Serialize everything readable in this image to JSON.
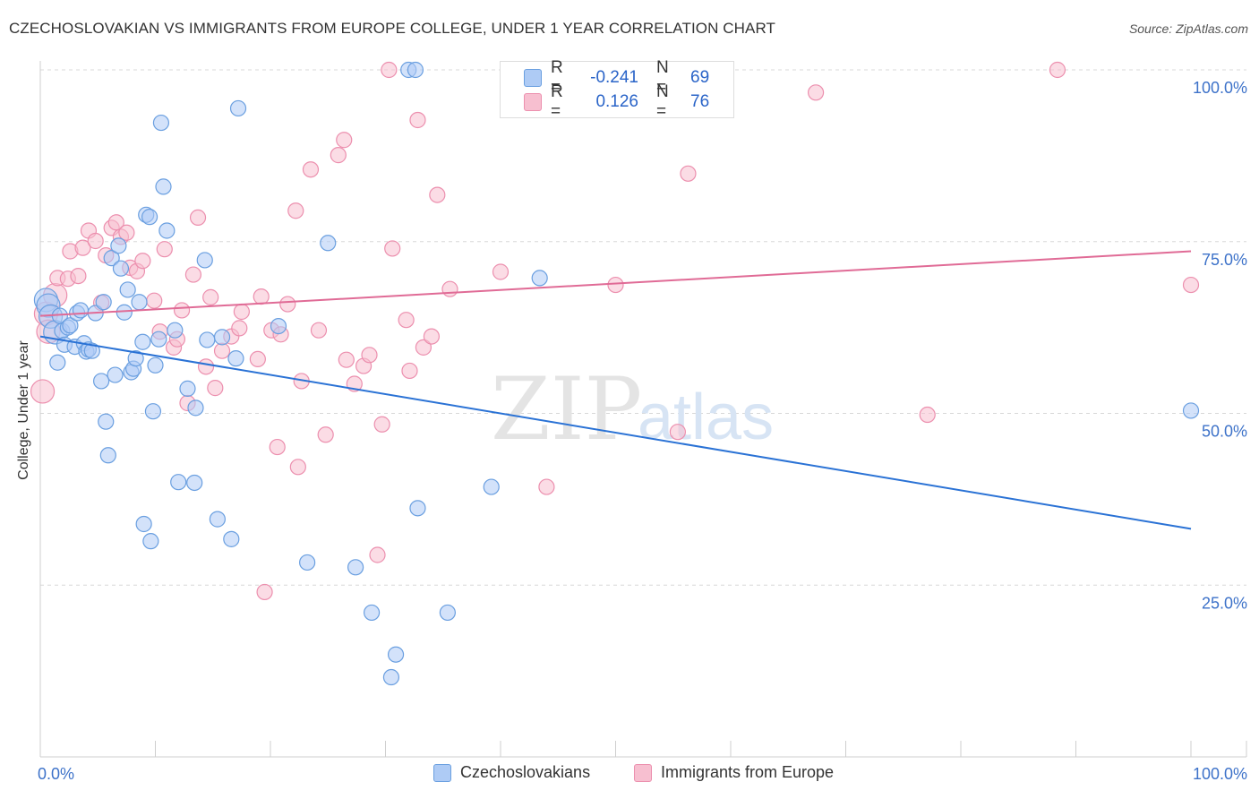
{
  "title": "CZECHOSLOVAKIAN VS IMMIGRANTS FROM EUROPE COLLEGE, UNDER 1 YEAR CORRELATION CHART",
  "source": "Source: ZipAtlas.com",
  "watermark": {
    "zip": "ZIP",
    "atlas": "atlas"
  },
  "legend": {
    "r_label": "R =",
    "n_label": "N =",
    "series1": {
      "r": "-0.241",
      "n": "69"
    },
    "series2": {
      "r": "0.126",
      "n": "76"
    }
  },
  "bottom_legend": {
    "series1": "Czechoslovakians",
    "series2": "Immigrants from Europe"
  },
  "colors": {
    "blue_fill": "#aecbf5",
    "blue_stroke": "#6a9fe0",
    "blue_line": "#2a72d5",
    "pink_fill": "#f7bfd0",
    "pink_stroke": "#ec8fae",
    "pink_line": "#e06b96",
    "axis_label": "#3d72c9"
  },
  "chart_data": {
    "type": "scatter",
    "title": "CZECHOSLOVAKIAN VS IMMIGRANTS FROM EUROPE COLLEGE, UNDER 1 YEAR CORRELATION CHART",
    "xlabel": "",
    "ylabel": "College, Under 1 year",
    "xlim": [
      0,
      100
    ],
    "ylim": [
      0,
      100
    ],
    "x_tick_labels": [
      "0.0%",
      "100.0%"
    ],
    "y_tick_labels": [
      "100.0%",
      "75.0%",
      "50.0%",
      "25.0%"
    ],
    "y_ticks": [
      100,
      75,
      50,
      25
    ],
    "grid": true,
    "legend_position": "top-center",
    "series": [
      {
        "name": "Czechoslovakians",
        "r": -0.241,
        "n": 69,
        "trend": {
          "x": [
            0,
            100
          ],
          "y": [
            61.2,
            33.2
          ]
        },
        "points": [
          [
            0.5,
            66.5
          ],
          [
            0.7,
            65.7
          ],
          [
            0.9,
            64.1
          ],
          [
            1.3,
            61.8
          ],
          [
            1.5,
            57.4
          ],
          [
            1.7,
            64.2
          ],
          [
            1.9,
            62.0
          ],
          [
            2.1,
            60.0
          ],
          [
            2.4,
            62.5
          ],
          [
            2.6,
            62.8
          ],
          [
            3.0,
            59.7
          ],
          [
            3.2,
            64.6
          ],
          [
            3.5,
            65.0
          ],
          [
            3.8,
            60.2
          ],
          [
            4.0,
            59.0
          ],
          [
            4.2,
            59.3
          ],
          [
            4.5,
            59.1
          ],
          [
            4.8,
            64.6
          ],
          [
            5.3,
            54.7
          ],
          [
            5.5,
            66.2
          ],
          [
            5.7,
            48.8
          ],
          [
            5.9,
            43.9
          ],
          [
            6.2,
            72.6
          ],
          [
            6.5,
            55.6
          ],
          [
            6.8,
            74.4
          ],
          [
            7.0,
            71.1
          ],
          [
            7.3,
            64.7
          ],
          [
            7.6,
            68.0
          ],
          [
            7.9,
            56.0
          ],
          [
            8.1,
            56.5
          ],
          [
            8.3,
            58.0
          ],
          [
            8.6,
            66.2
          ],
          [
            8.9,
            60.4
          ],
          [
            9.0,
            33.9
          ],
          [
            9.2,
            78.9
          ],
          [
            9.5,
            78.6
          ],
          [
            9.6,
            31.4
          ],
          [
            9.8,
            50.3
          ],
          [
            10.0,
            57.0
          ],
          [
            10.3,
            60.8
          ],
          [
            10.5,
            92.3
          ],
          [
            10.7,
            83.0
          ],
          [
            11.0,
            76.6
          ],
          [
            11.7,
            62.1
          ],
          [
            12.0,
            40.0
          ],
          [
            12.8,
            53.6
          ],
          [
            13.4,
            39.9
          ],
          [
            13.5,
            50.8
          ],
          [
            14.3,
            72.3
          ],
          [
            14.5,
            60.7
          ],
          [
            15.4,
            34.6
          ],
          [
            15.8,
            61.1
          ],
          [
            16.6,
            31.7
          ],
          [
            17.0,
            58.0
          ],
          [
            17.2,
            94.4
          ],
          [
            20.7,
            62.7
          ],
          [
            23.2,
            28.3
          ],
          [
            25.0,
            74.8
          ],
          [
            27.4,
            27.6
          ],
          [
            28.8,
            21.0
          ],
          [
            30.5,
            11.6
          ],
          [
            30.9,
            14.9
          ],
          [
            32.0,
            100.0
          ],
          [
            32.6,
            100.0
          ],
          [
            32.8,
            36.2
          ],
          [
            35.4,
            21.0
          ],
          [
            39.2,
            39.3
          ],
          [
            43.4,
            69.7
          ],
          [
            100.0,
            50.4
          ]
        ]
      },
      {
        "name": "Immigrants from Europe",
        "r": 0.126,
        "n": 76,
        "trend": {
          "x": [
            0,
            100
          ],
          "y": [
            64.2,
            73.6
          ]
        },
        "points": [
          [
            0.2,
            53.2
          ],
          [
            0.5,
            64.5
          ],
          [
            0.7,
            61.9
          ],
          [
            1.3,
            67.2
          ],
          [
            1.5,
            69.7
          ],
          [
            2.4,
            69.6
          ],
          [
            2.6,
            73.6
          ],
          [
            3.3,
            70.0
          ],
          [
            3.7,
            74.1
          ],
          [
            4.2,
            76.6
          ],
          [
            4.8,
            75.1
          ],
          [
            5.3,
            66.1
          ],
          [
            5.7,
            73.0
          ],
          [
            6.2,
            77.0
          ],
          [
            6.6,
            77.8
          ],
          [
            7.0,
            75.7
          ],
          [
            7.5,
            76.3
          ],
          [
            7.8,
            71.2
          ],
          [
            8.4,
            70.7
          ],
          [
            8.9,
            72.2
          ],
          [
            9.9,
            66.4
          ],
          [
            10.4,
            61.9
          ],
          [
            10.8,
            73.9
          ],
          [
            11.6,
            59.6
          ],
          [
            11.9,
            60.8
          ],
          [
            12.3,
            65.0
          ],
          [
            12.8,
            51.5
          ],
          [
            13.3,
            70.2
          ],
          [
            13.7,
            78.5
          ],
          [
            14.4,
            56.8
          ],
          [
            14.8,
            66.9
          ],
          [
            15.2,
            53.7
          ],
          [
            15.8,
            59.1
          ],
          [
            16.6,
            61.2
          ],
          [
            17.3,
            62.4
          ],
          [
            17.5,
            64.8
          ],
          [
            18.9,
            57.9
          ],
          [
            19.2,
            67.0
          ],
          [
            19.5,
            24.0
          ],
          [
            20.1,
            62.1
          ],
          [
            20.6,
            45.1
          ],
          [
            20.9,
            61.5
          ],
          [
            21.5,
            65.9
          ],
          [
            22.2,
            79.5
          ],
          [
            22.4,
            42.2
          ],
          [
            22.7,
            54.7
          ],
          [
            23.5,
            85.5
          ],
          [
            24.2,
            62.1
          ],
          [
            24.8,
            46.9
          ],
          [
            25.9,
            87.6
          ],
          [
            26.4,
            89.8
          ],
          [
            26.6,
            57.8
          ],
          [
            27.3,
            54.3
          ],
          [
            28.1,
            56.9
          ],
          [
            28.6,
            58.5
          ],
          [
            29.3,
            29.4
          ],
          [
            29.7,
            48.4
          ],
          [
            30.3,
            100.0
          ],
          [
            30.6,
            74.0
          ],
          [
            31.8,
            63.6
          ],
          [
            32.1,
            56.2
          ],
          [
            32.8,
            92.7
          ],
          [
            33.3,
            59.6
          ],
          [
            34.0,
            61.2
          ],
          [
            34.5,
            81.8
          ],
          [
            35.6,
            68.1
          ],
          [
            40.0,
            70.6
          ],
          [
            44.0,
            39.3
          ],
          [
            50.0,
            68.7
          ],
          [
            53.0,
            100.0
          ],
          [
            55.4,
            47.3
          ],
          [
            56.3,
            84.9
          ],
          [
            67.4,
            96.7
          ],
          [
            77.1,
            49.8
          ],
          [
            88.4,
            100.0
          ],
          [
            100.0,
            68.7
          ]
        ]
      }
    ]
  }
}
